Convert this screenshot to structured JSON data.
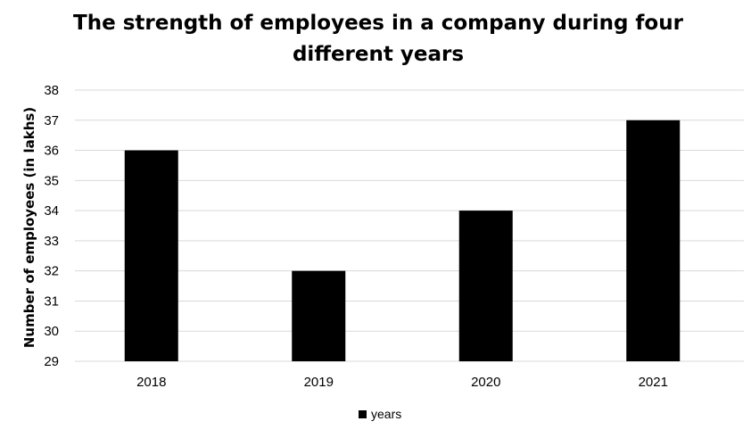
{
  "chart_data": {
    "type": "bar",
    "title_lines": [
      "The strength of employees in a company during four",
      "different years"
    ],
    "xlabel": "",
    "ylabel": "Number of employees  (in lakhs)",
    "categories": [
      "2018",
      "2019",
      "2020",
      "2021"
    ],
    "series": [
      {
        "name": "years",
        "values": [
          36,
          32,
          34,
          37
        ],
        "color": "#000000"
      }
    ],
    "ylim": [
      29,
      38
    ],
    "yticks": [
      "29",
      "30",
      "31",
      "32",
      "33",
      "34",
      "35",
      "36",
      "37",
      "38"
    ],
    "grid": true,
    "gridline_color": "#d9d9d9",
    "legend_position": "bottom"
  }
}
